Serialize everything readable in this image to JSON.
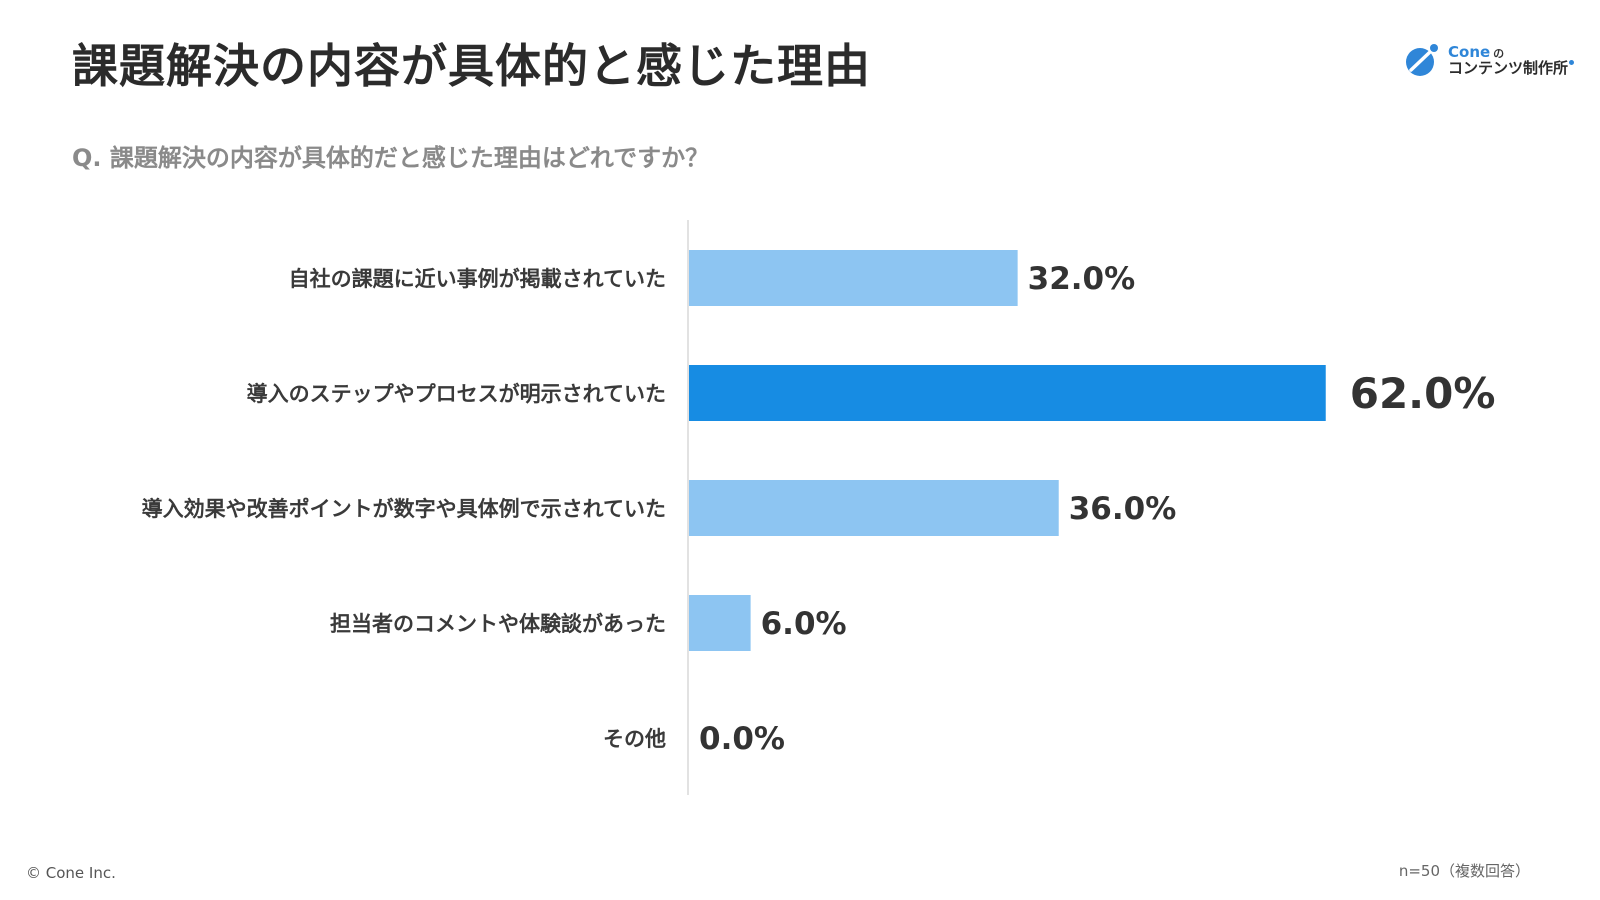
{
  "title": "課題解決の内容が具体的と感じた理由",
  "question": "Q. 課題解決の内容が具体的だと感じた理由はどれですか？",
  "logo": {
    "line1": "Cone",
    "line1_suffix": "の",
    "line2": "コンテンツ制作所",
    "accent": "#2f86d8"
  },
  "footer": {
    "copyright": "© Cone Inc.",
    "sample": "n=50（複数回答）"
  },
  "colors": {
    "bar_default": "#8dc5f2",
    "bar_highlight": "#178ce3",
    "axis": "#d9d9d9",
    "label": "#3a3a3a"
  },
  "chart_data": {
    "type": "bar",
    "orientation": "horizontal",
    "categories": [
      "自社の課題に近い事例が掲載されていた",
      "導入のステップやプロセスが明示されていた",
      "導入効果や改善ポイントが数字や具体例で示されていた",
      "担当者のコメントや体験談があった",
      "その他"
    ],
    "values": [
      32.0,
      62.0,
      36.0,
      6.0,
      0.0
    ],
    "value_labels": [
      "32.0%",
      "62.0%",
      "36.0%",
      "6.0%",
      "0.0%"
    ],
    "highlight_index": 1,
    "xlim": [
      0,
      100
    ],
    "grid": false,
    "legend": "none"
  }
}
